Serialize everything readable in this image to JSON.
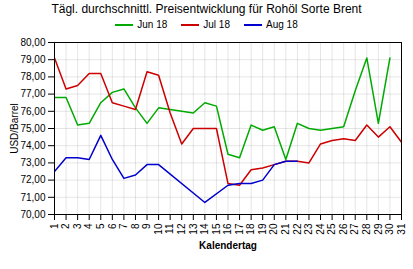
{
  "chart_data": {
    "type": "line",
    "title": "Tägl. durchschnittl. Preisentwicklung für Rohöl Sorte Brent",
    "xlabel": "Kalendertag",
    "ylabel": "USD/Barrel",
    "xlim": [
      1,
      31
    ],
    "xticks": [
      1,
      2,
      3,
      4,
      5,
      6,
      7,
      8,
      9,
      10,
      11,
      12,
      13,
      14,
      15,
      16,
      17,
      18,
      19,
      20,
      21,
      22,
      23,
      24,
      25,
      26,
      27,
      28,
      29,
      30,
      31
    ],
    "ylim": [
      70.0,
      80.0
    ],
    "yticks": [
      {
        "value": 70.0,
        "label": "70,00"
      },
      {
        "value": 71.0,
        "label": "71,00"
      },
      {
        "value": 72.0,
        "label": "72,00"
      },
      {
        "value": 73.0,
        "label": "73,00"
      },
      {
        "value": 74.0,
        "label": "74,00"
      },
      {
        "value": 75.0,
        "label": "75,00"
      },
      {
        "value": 76.0,
        "label": "76,00"
      },
      {
        "value": 77.0,
        "label": "77,00"
      },
      {
        "value": 78.0,
        "label": "78,00"
      },
      {
        "value": 79.0,
        "label": "79,00"
      },
      {
        "value": 80.0,
        "label": "80,00"
      }
    ],
    "grid": true,
    "legend": "top",
    "series": [
      {
        "name": "Jun 18",
        "color": "#00AA00",
        "x": [
          1,
          2,
          3,
          4,
          5,
          6,
          7,
          8,
          9,
          10,
          11,
          12,
          13,
          14,
          15,
          16,
          17,
          18,
          19,
          20,
          21,
          22,
          23,
          24,
          25,
          26,
          27,
          28,
          29,
          30
        ],
        "values": [
          76.8,
          76.8,
          75.2,
          75.3,
          76.5,
          77.1,
          77.3,
          76.2,
          75.3,
          76.2,
          76.1,
          76.0,
          75.9,
          76.5,
          76.3,
          73.5,
          73.3,
          75.2,
          74.9,
          75.1,
          73.2,
          75.3,
          75.0,
          74.9,
          75.0,
          75.1,
          77.2,
          79.1,
          75.3,
          79.1
        ]
      },
      {
        "name": "Jul 18",
        "color": "#CC0000",
        "x": [
          1,
          2,
          3,
          4,
          5,
          6,
          7,
          8,
          9,
          10,
          11,
          12,
          13,
          14,
          15,
          16,
          17,
          18,
          19,
          20,
          21,
          22,
          23,
          24,
          25,
          26,
          27,
          28,
          29,
          30,
          31
        ],
        "values": [
          79.1,
          77.3,
          77.5,
          78.2,
          78.2,
          76.5,
          76.3,
          76.1,
          78.3,
          78.1,
          75.9,
          74.1,
          75.0,
          75.0,
          75.0,
          71.8,
          71.7,
          72.6,
          72.7,
          72.9,
          73.1,
          73.1,
          73.0,
          74.1,
          74.3,
          74.4,
          74.3,
          75.2,
          74.5,
          75.1,
          74.2
        ]
      },
      {
        "name": "Aug 18",
        "color": "#0000CC",
        "x": [
          1,
          2,
          3,
          4,
          5,
          6,
          7,
          8,
          9,
          10,
          14,
          16,
          17,
          18,
          19,
          20,
          21,
          22
        ],
        "values": [
          72.5,
          73.3,
          73.3,
          73.2,
          74.6,
          73.2,
          72.1,
          72.3,
          72.9,
          72.9,
          70.7,
          71.7,
          71.8,
          71.8,
          72.0,
          72.9,
          73.1,
          73.1
        ]
      }
    ]
  }
}
